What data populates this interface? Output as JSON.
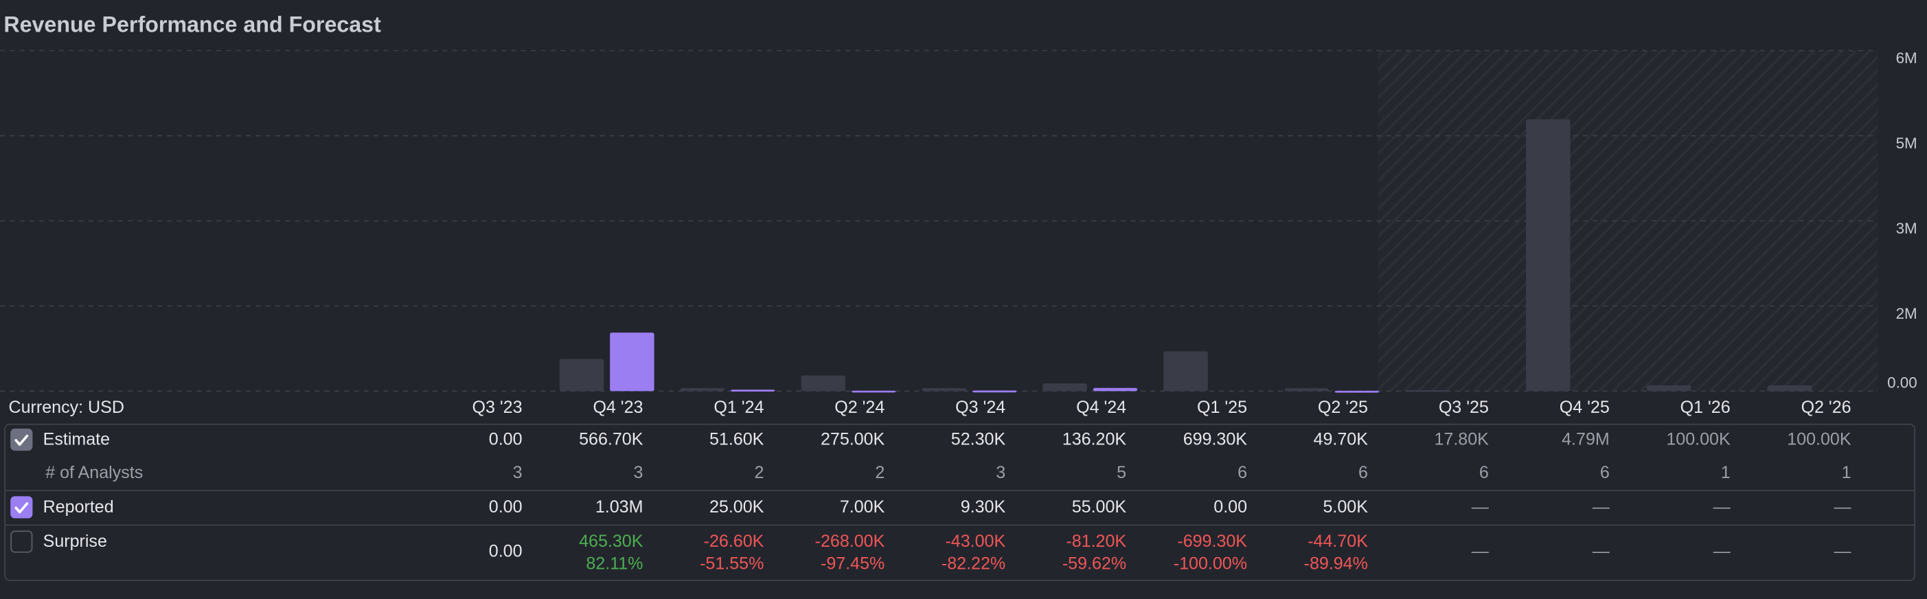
{
  "chart_data": {
    "type": "bar",
    "title": "Revenue Performance and Forecast",
    "currency": "Currency: USD",
    "categories": [
      "Q3 '23",
      "Q4 '23",
      "Q1 '24",
      "Q2 '24",
      "Q3 '24",
      "Q4 '24",
      "Q1 '25",
      "Q2 '25",
      "Q3 '25",
      "Q4 '25",
      "Q1 '26",
      "Q2 '26"
    ],
    "forecast_start": "Q3 '25",
    "series": [
      {
        "name": "Estimate",
        "color": "#3a3c48",
        "checked": true,
        "values": [
          0,
          566700,
          51600,
          275000,
          52300,
          136200,
          699300,
          49700,
          17800,
          4790000,
          100000,
          100000
        ],
        "value_labels": [
          "0.00",
          "566.70K",
          "51.60K",
          "275.00K",
          "52.30K",
          "136.20K",
          "699.30K",
          "49.70K",
          "17.80K",
          "4.79M",
          "100.00K",
          "100.00K"
        ]
      },
      {
        "name": "Reported",
        "color": "#9b7ef2",
        "checked": true,
        "values": [
          0,
          1030000,
          25000,
          7000,
          9300,
          55000,
          0,
          5000,
          null,
          null,
          null,
          null
        ],
        "value_labels": [
          "0.00",
          "1.03M",
          "25.00K",
          "7.00K",
          "9.30K",
          "55.00K",
          "0.00",
          "5.00K",
          "—",
          "—",
          "—",
          "—"
        ]
      }
    ],
    "analysts": {
      "name": "# of Analysts",
      "values": [
        3,
        3,
        2,
        2,
        3,
        5,
        6,
        6,
        6,
        6,
        1,
        1
      ]
    },
    "surprise": {
      "name": "Surprise",
      "checked": false,
      "values": [
        0,
        465300,
        -26600,
        -268000,
        -43000,
        -81200,
        -699300,
        -44700,
        null,
        null,
        null,
        null
      ],
      "value_labels": [
        "0.00",
        "465.30K",
        "-26.60K",
        "-268.00K",
        "-43.00K",
        "-81.20K",
        "-699.30K",
        "-44.70K",
        "—",
        "—",
        "—",
        "—"
      ],
      "percent": [
        null,
        82.11,
        -51.55,
        -97.45,
        -82.22,
        -59.62,
        -100.0,
        -89.94,
        null,
        null,
        null,
        null
      ],
      "percent_labels": [
        null,
        "82.11%",
        "-51.55%",
        "-97.45%",
        "-82.22%",
        "-59.62%",
        "-100.00%",
        "-89.94%",
        null,
        null,
        null,
        null
      ]
    },
    "ylim": [
      0,
      6000000
    ],
    "yticks": [
      {
        "value": 0,
        "label": "0.00"
      },
      {
        "value": 1500000,
        "label": "2M"
      },
      {
        "value": 3000000,
        "label": "3M"
      },
      {
        "value": 4500000,
        "label": "5M"
      },
      {
        "value": 6000000,
        "label": "6M"
      }
    ],
    "grid": true
  }
}
